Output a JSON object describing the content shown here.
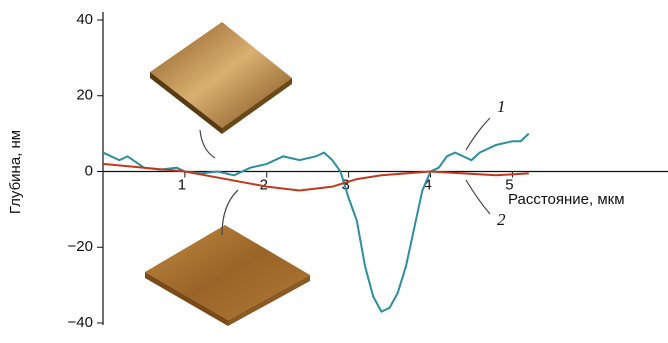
{
  "chart_data": {
    "type": "line",
    "y_label": "Глубина, нм",
    "x_label": "Расстояние, мкм",
    "xlim": [
      0,
      6.9
    ],
    "ylim": [
      -40,
      40
    ],
    "xticks": [
      1,
      2,
      3,
      4,
      5
    ],
    "yticks": [
      40,
      20,
      0,
      {
        "value": -20,
        "label": "−20"
      },
      {
        "value": -40,
        "label": "−40"
      }
    ],
    "series": [
      {
        "name": "1",
        "color": "#2b8f9e",
        "x": [
          0,
          0.2,
          0.3,
          0.5,
          0.7,
          0.9,
          1.0,
          1.2,
          1.4,
          1.6,
          1.8,
          2.0,
          2.2,
          2.4,
          2.6,
          2.7,
          2.8,
          2.9,
          3.0,
          3.1,
          3.2,
          3.3,
          3.4,
          3.5,
          3.6,
          3.7,
          3.8,
          3.9,
          4.0,
          4.1,
          4.2,
          4.3,
          4.4,
          4.5,
          4.6,
          4.8,
          5.0,
          5.1,
          5.2
        ],
        "values": [
          5,
          3,
          4,
          1,
          0.5,
          1,
          0,
          -0.5,
          0,
          -1,
          1,
          2,
          4,
          3,
          4,
          5,
          3,
          0,
          -7,
          -13,
          -25,
          -33,
          -37,
          -36,
          -32,
          -25,
          -15,
          -5,
          0,
          1,
          4,
          5,
          4,
          3,
          5,
          7,
          8,
          8,
          10
        ]
      },
      {
        "name": "2",
        "color": "#c2381c",
        "x": [
          0,
          0.5,
          1.0,
          1.5,
          2.0,
          2.4,
          2.8,
          3.1,
          3.4,
          3.7,
          4.0,
          4.4,
          4.8,
          5.2
        ],
        "values": [
          2,
          1,
          0,
          -2,
          -4,
          -5,
          -4,
          -2,
          -1,
          -0.5,
          0,
          -0.5,
          -1,
          -0.5
        ]
      }
    ]
  }
}
